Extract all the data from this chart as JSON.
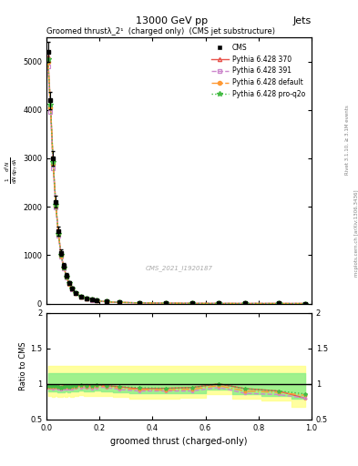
{
  "title_top": "13000 GeV pp",
  "title_right": "Jets",
  "plot_title": "Groomed thrustλ_2¹  (charged only)  (CMS jet substructure)",
  "xlabel": "groomed thrust (charged-only)",
  "ylabel_main": "1 / #mathrm{d}N / #mathrm{d}p_{T} #mathrm{d}\\lambda",
  "ylabel_ratio": "Ratio to CMS",
  "watermark": "CMS_2021_I1920187",
  "rivet_label": "Rivet 3.1.10, ≥ 3.1M events",
  "arxiv_label": "mcplots.cern.ch [arXiv:1306.3436]",
  "cms_color": "#000000",
  "line1_color": "#e8534b",
  "line2_color": "#cc88cc",
  "line3_color": "#ff9933",
  "line4_color": "#44bb44",
  "band1_color": "#ffff88",
  "band2_color": "#88ee88",
  "xlim": [
    0.0,
    1.0
  ],
  "ylim_main": [
    0,
    5500
  ],
  "ylim_ratio": [
    0.5,
    2.0
  ],
  "x_data": [
    0.005,
    0.015,
    0.025,
    0.035,
    0.045,
    0.055,
    0.065,
    0.075,
    0.085,
    0.095,
    0.11,
    0.13,
    0.15,
    0.17,
    0.19,
    0.225,
    0.275,
    0.35,
    0.45,
    0.55,
    0.65,
    0.75,
    0.875,
    0.975
  ],
  "cms_y": [
    5200,
    4200,
    3000,
    2100,
    1500,
    1050,
    780,
    580,
    430,
    320,
    220,
    150,
    110,
    80,
    60,
    40,
    25,
    15,
    8,
    4,
    2,
    1.5,
    1,
    0.5
  ],
  "py370_y": [
    5100,
    4100,
    2900,
    2050,
    1450,
    1010,
    760,
    560,
    420,
    310,
    215,
    148,
    108,
    78,
    59,
    39,
    24,
    14,
    7.5,
    3.8,
    2.0,
    1.4,
    0.9,
    0.4
  ],
  "py391_y": [
    4900,
    3950,
    2800,
    1980,
    1400,
    970,
    730,
    540,
    400,
    300,
    208,
    142,
    104,
    75,
    57,
    38,
    23,
    13.5,
    7.2,
    3.6,
    1.9,
    1.3,
    0.85,
    0.4
  ],
  "pydef_y": [
    5000,
    4050,
    2880,
    2020,
    1430,
    990,
    745,
    555,
    410,
    308,
    212,
    145,
    106,
    77,
    58,
    38.5,
    23.5,
    13.8,
    7.3,
    3.7,
    1.95,
    1.35,
    0.88,
    0.42
  ],
  "pyq2o_y": [
    5050,
    4100,
    2920,
    2040,
    1440,
    1000,
    750,
    560,
    415,
    312,
    215,
    147,
    107,
    78,
    59,
    39,
    24,
    14.2,
    7.5,
    3.8,
    2.0,
    1.4,
    0.9,
    0.43
  ],
  "ratio_x": [
    0.005,
    0.015,
    0.025,
    0.035,
    0.045,
    0.055,
    0.065,
    0.075,
    0.085,
    0.095,
    0.11,
    0.13,
    0.15,
    0.17,
    0.19,
    0.225,
    0.275,
    0.35,
    0.45,
    0.55,
    0.65,
    0.75,
    0.875,
    0.975
  ],
  "ratio_py370": [
    0.98,
    0.976,
    0.967,
    0.976,
    0.967,
    0.962,
    0.974,
    0.966,
    0.977,
    0.969,
    0.977,
    0.987,
    0.982,
    0.975,
    0.983,
    0.975,
    0.96,
    0.933,
    0.938,
    0.95,
    1.0,
    0.933,
    0.9,
    0.8
  ],
  "ratio_py391": [
    0.942,
    0.94,
    0.933,
    0.943,
    0.933,
    0.924,
    0.936,
    0.931,
    0.93,
    0.938,
    0.945,
    0.947,
    0.945,
    0.938,
    0.95,
    0.95,
    0.92,
    0.9,
    0.9,
    0.9,
    0.95,
    0.867,
    0.85,
    0.8
  ],
  "ratio_pydef": [
    0.962,
    0.964,
    0.96,
    0.962,
    0.953,
    0.943,
    0.955,
    0.957,
    0.953,
    0.963,
    0.964,
    0.967,
    0.964,
    0.963,
    0.967,
    0.963,
    0.94,
    0.92,
    0.913,
    0.925,
    0.975,
    0.9,
    0.88,
    0.84
  ],
  "ratio_pyq2o": [
    0.971,
    0.976,
    0.973,
    0.971,
    0.96,
    0.952,
    0.962,
    0.966,
    0.965,
    0.975,
    0.977,
    0.98,
    0.973,
    0.975,
    0.983,
    0.975,
    0.96,
    0.947,
    0.938,
    0.95,
    1.0,
    0.933,
    0.9,
    0.86
  ],
  "cms_yerr": [
    200,
    180,
    150,
    120,
    90,
    70,
    55,
    42,
    32,
    25,
    18,
    13,
    10,
    8,
    6,
    4,
    2.8,
    1.8,
    1.0,
    0.6,
    0.4,
    0.3,
    0.2,
    0.15
  ]
}
